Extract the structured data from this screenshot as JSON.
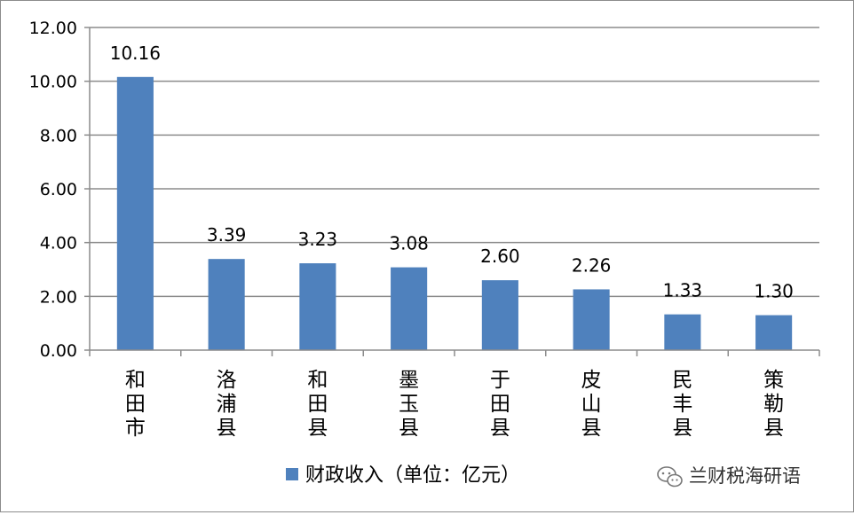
{
  "chart_data": {
    "type": "bar",
    "categories": [
      "和田市",
      "洛浦县",
      "和田县",
      "墨玉县",
      "于田县",
      "皮山县",
      "民丰县",
      "策勒县"
    ],
    "series": [
      {
        "name": "财政收入（单位：亿元）",
        "values": [
          10.16,
          3.39,
          3.23,
          3.08,
          2.6,
          2.26,
          1.33,
          1.3
        ],
        "value_labels": [
          "10.16",
          "3.39",
          "3.23",
          "3.08",
          "2.60",
          "2.26",
          "1.33",
          "1.30"
        ]
      }
    ],
    "ylim": [
      0,
      12
    ],
    "yticks": [
      "0.00",
      "2.00",
      "4.00",
      "6.00",
      "8.00",
      "10.00",
      "12.00"
    ],
    "grid": true,
    "legend_position": "bottom",
    "colors": {
      "bar": "#4f81bd",
      "grid": "#8c8c8c",
      "axis": "#8c8c8c"
    }
  },
  "watermark": {
    "text": "兰财税海研语",
    "icon": "wechat-icon"
  }
}
